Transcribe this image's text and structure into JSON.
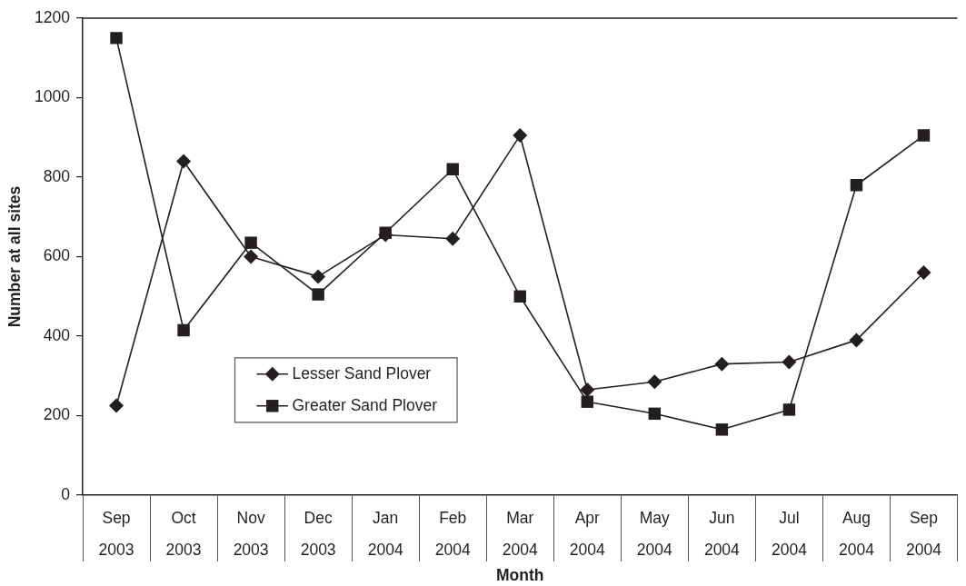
{
  "chart_data": {
    "type": "line",
    "xlabel": "Month",
    "ylabel": "Number at all sites",
    "categories": [
      "Sep 2003",
      "Oct 2003",
      "Nov 2003",
      "Dec 2003",
      "Jan 2004",
      "Feb 2004",
      "Mar 2004",
      "Apr 2004",
      "May 2004",
      "Jun 2004",
      "Jul 2004",
      "Aug 2004",
      "Sep 2004"
    ],
    "series": [
      {
        "name": "Lesser Sand Plover",
        "color": "#231f20",
        "marker": "diamond",
        "values": [
          225,
          840,
          600,
          550,
          655,
          645,
          905,
          265,
          285,
          330,
          335,
          390,
          560
        ]
      },
      {
        "name": "Greater Sand Plover",
        "color": "#231f20",
        "marker": "square",
        "values": [
          1150,
          415,
          635,
          505,
          660,
          820,
          500,
          235,
          205,
          165,
          215,
          780,
          905
        ]
      }
    ],
    "ylim": [
      0,
      1200
    ],
    "yticks": [
      0,
      200,
      400,
      600,
      800,
      1000,
      1200
    ],
    "grid": false,
    "legend": "bottom left",
    "line_style": "solid"
  }
}
